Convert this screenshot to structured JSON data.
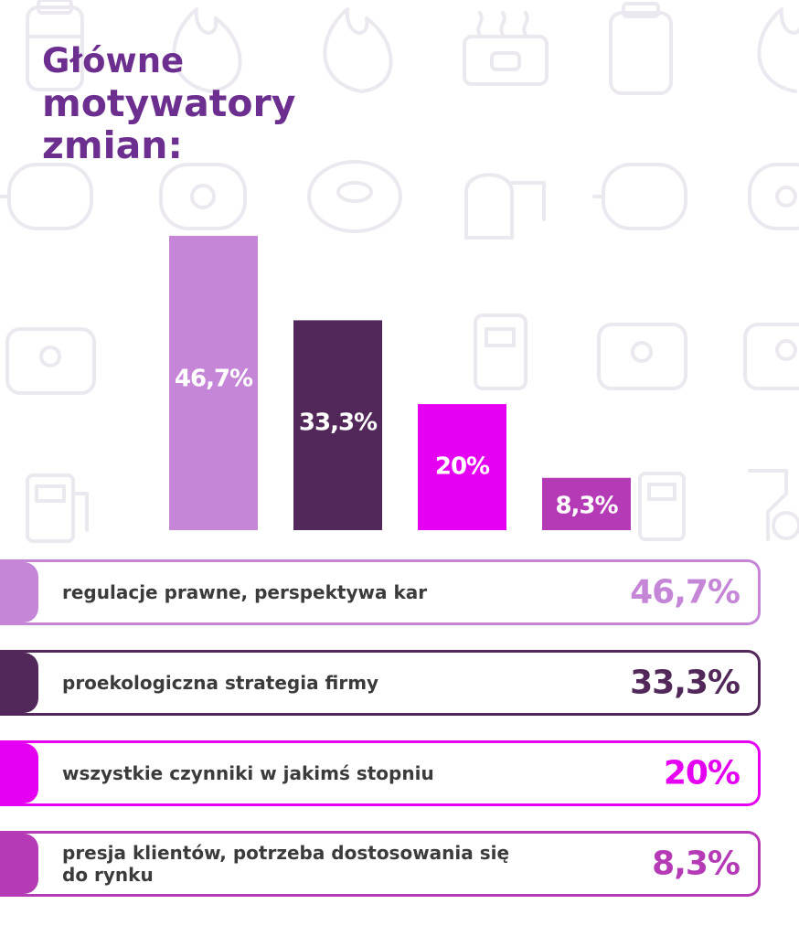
{
  "title": {
    "line1": "Główne",
    "line2": "motywatory",
    "line3": "zmian:"
  },
  "chart_data": {
    "type": "bar",
    "categories": [
      "regulacje prawne, perspektywa kar",
      "proekologiczna strategia firmy",
      "wszystkie czynniki w jakimś stopniu",
      "presja klientów, potrzeba dostosowania się do rynku"
    ],
    "values": [
      46.7,
      33.3,
      20,
      8.3
    ],
    "value_labels": [
      "46,7%",
      "33,3%",
      "20%",
      "8,3%"
    ],
    "colors": [
      "#c586d8",
      "#52285b",
      "#e600f2",
      "#b53ab6"
    ],
    "ylim": [
      0,
      46.7
    ],
    "grid": false,
    "legend": "below"
  },
  "legend": [
    {
      "label": "regulacje prawne, perspektywa kar",
      "value": "46,7%",
      "color": "#c586d8"
    },
    {
      "label": "proekologiczna strategia firmy",
      "value": "33,3%",
      "color": "#52285b"
    },
    {
      "label": "wszystkie czynniki w jakimś stopniu",
      "value": "20%",
      "color": "#e600f2"
    },
    {
      "label": "presja klientów, potrzeba dostosowania się do rynku",
      "value": "8,3%",
      "color": "#b53ab6"
    }
  ],
  "background_icons": [
    "gas-cylinder-icon",
    "flame-icon",
    "boiler-icon",
    "tank-icon",
    "fuel-pump-icon",
    "car-icon"
  ]
}
